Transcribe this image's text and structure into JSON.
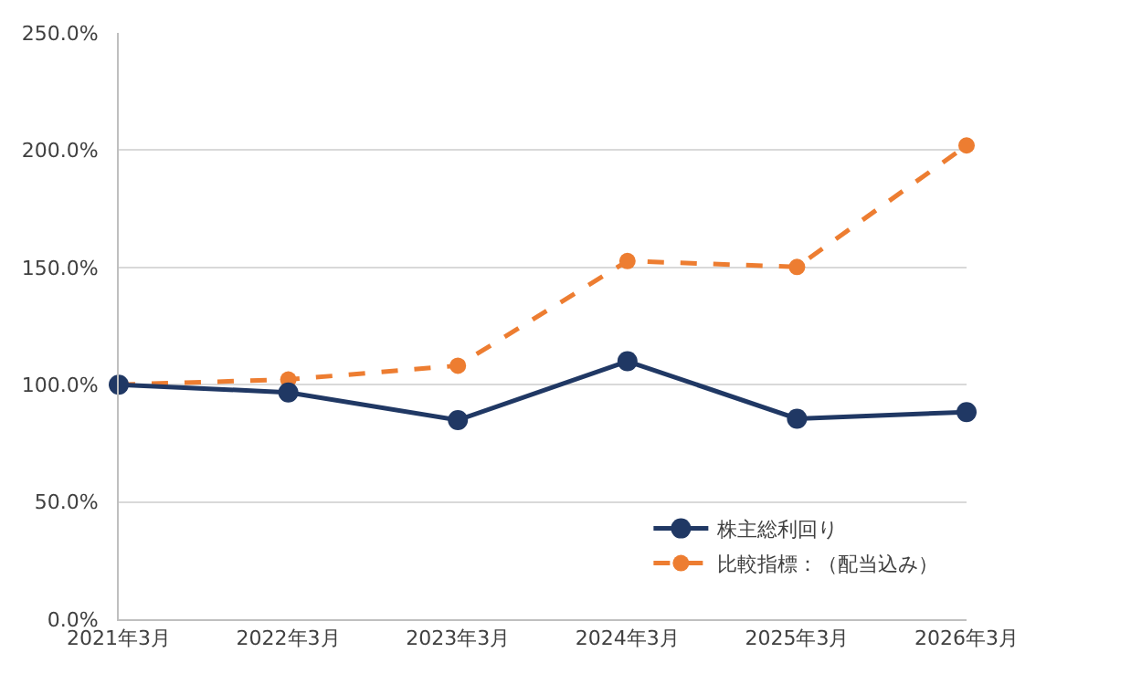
{
  "chart_data": {
    "type": "line",
    "categories": [
      "2021年3月",
      "2022年3月",
      "2023年3月",
      "2024年3月",
      "2025年3月",
      "2026年3月"
    ],
    "series": [
      {
        "name": "株主総利回り",
        "color": "#203864",
        "values": [
          100,
          96.7,
          84.9,
          110,
          85.5,
          88.3
        ],
        "line_style": "solid"
      },
      {
        "name": "比較指標：（配当込み）",
        "color": "#ed7d31",
        "values": [
          100,
          102.2,
          108.1,
          152.7,
          150.2,
          202
        ],
        "line_style": "dashed"
      }
    ],
    "ylim": [
      0,
      250
    ],
    "yticks": [
      {
        "value": 0,
        "label": "0.0%"
      },
      {
        "value": 50,
        "label": "50.0%"
      },
      {
        "value": 100,
        "label": "100.0%"
      },
      {
        "value": 150,
        "label": "150.0%"
      },
      {
        "value": 200,
        "label": "200.0%"
      },
      {
        "value": 250,
        "label": "250.0%"
      }
    ],
    "grid": "y",
    "legend": "bottom",
    "marker": "circle"
  }
}
